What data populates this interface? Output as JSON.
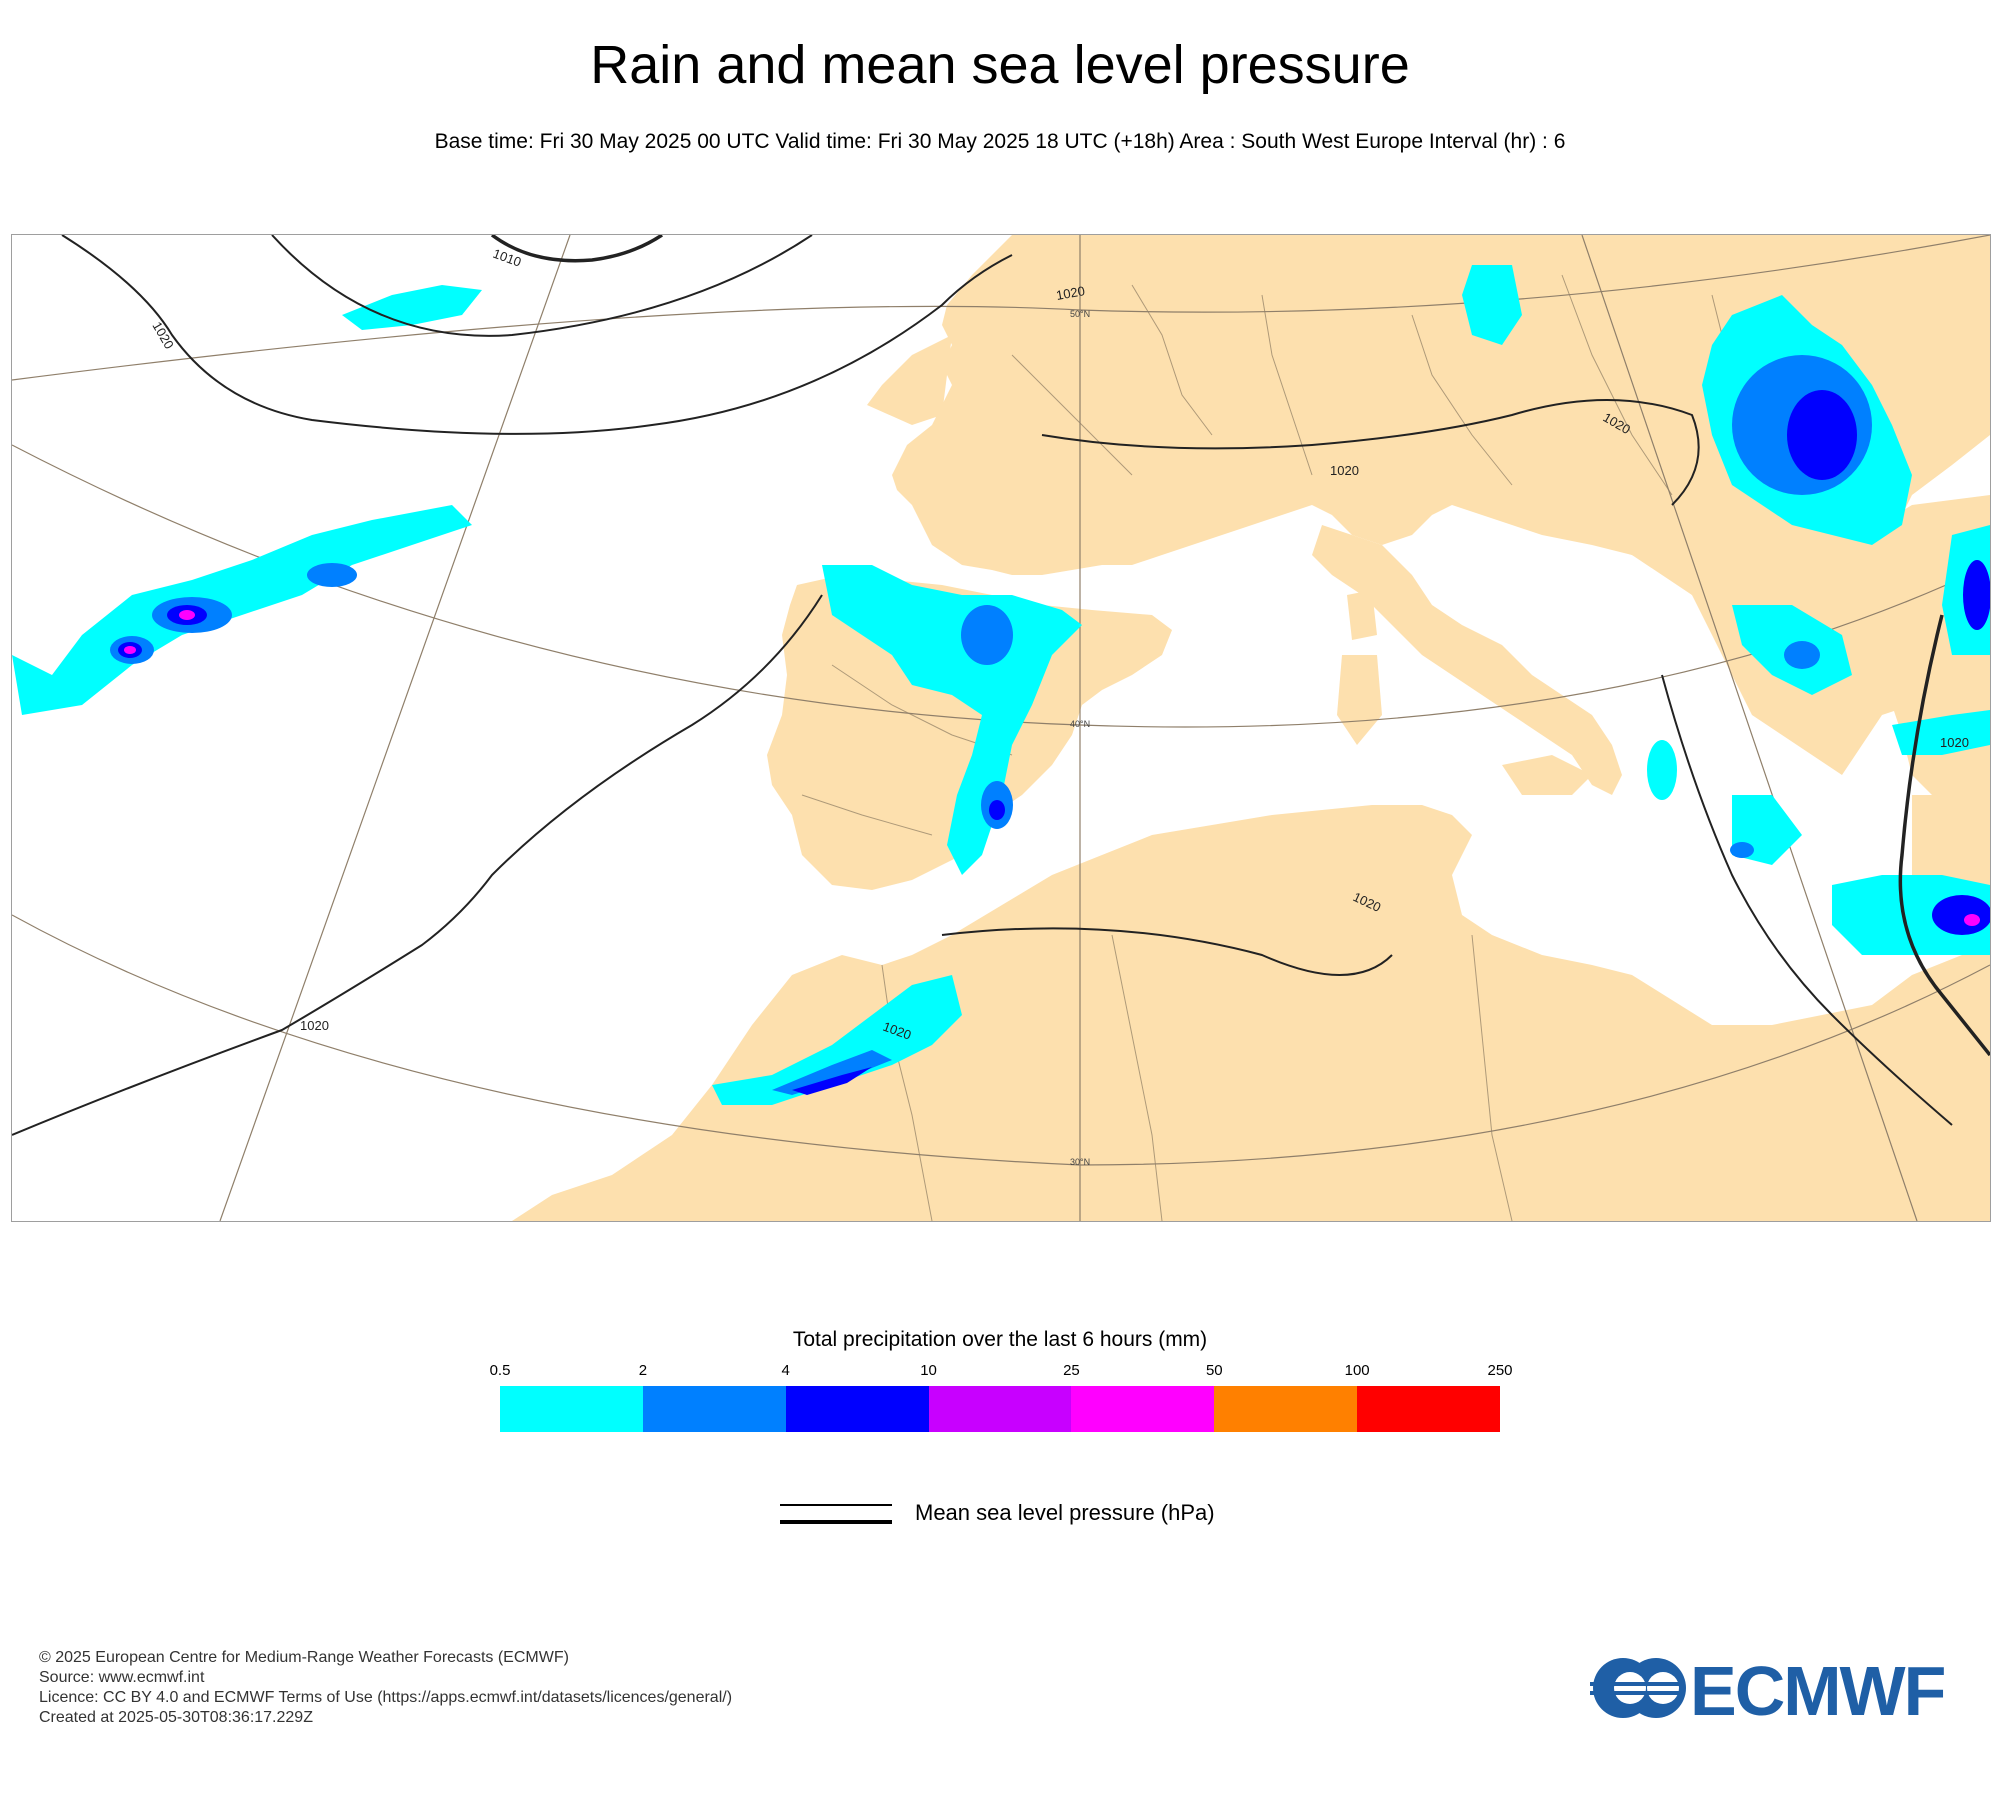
{
  "header": {
    "title": "Rain and mean sea level pressure",
    "subtitle": "Base time: Fri 30 May 2025 00 UTC Valid time: Fri 30 May 2025 18 UTC (+18h) Area : South West Europe Interval (hr) : 6"
  },
  "map": {
    "land_color": "#fde0ae",
    "sea_color": "#ffffff",
    "isobar_labels": [
      "1020",
      "1010",
      "1020",
      "1020",
      "1020",
      "1020",
      "1020",
      "1020",
      "1020"
    ],
    "graticule_labels": [
      "50°N",
      "40°N",
      "30°N"
    ]
  },
  "legend": {
    "title": "Total precipitation over the last 6 hours (mm)",
    "ticks": [
      "0.5",
      "2",
      "4",
      "10",
      "25",
      "50",
      "100",
      "250"
    ],
    "colors": [
      "#00ffff",
      "#0080ff",
      "#0000ff",
      "#c800ff",
      "#ff00ff",
      "#ff8000",
      "#ff0000"
    ],
    "msl_label": "Mean sea level pressure (hPa)"
  },
  "footer": {
    "line1": "© 2025 European Centre for Medium-Range Weather Forecasts (ECMWF)",
    "line2": "Source: www.ecmwf.int",
    "line3": "Licence: CC BY 4.0 and ECMWF Terms of Use (https://apps.ecmwf.int/datasets/licences/general/)",
    "line4": "Created at 2025-05-30T08:36:17.229Z"
  },
  "logo": {
    "text": "ECMWF",
    "color": "#1f5fa6"
  }
}
